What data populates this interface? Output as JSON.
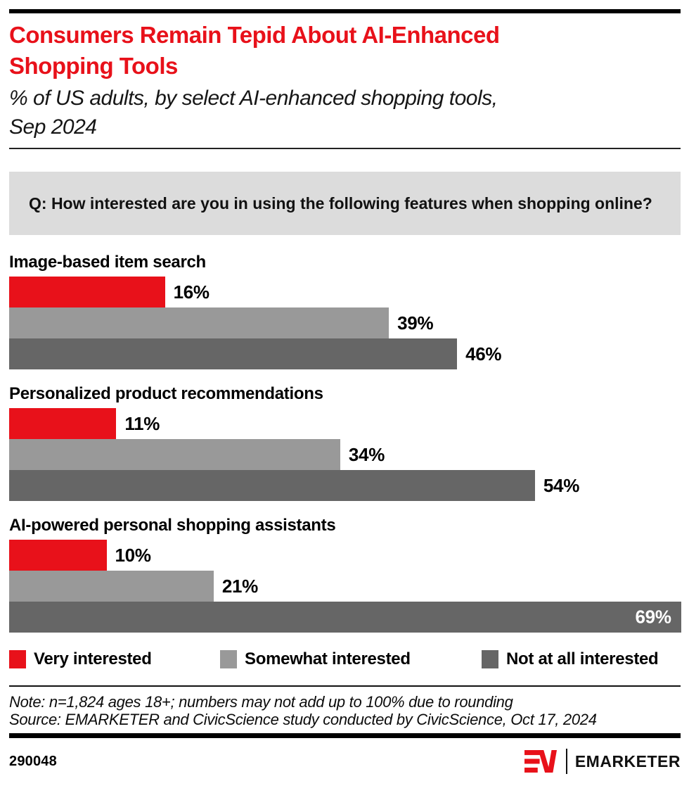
{
  "header": {
    "title_lines": [
      "Consumers Remain Tepid About AI-Enhanced",
      "Shopping Tools"
    ],
    "subtitle_lines": [
      "% of US adults, by select AI-enhanced shopping tools,",
      "Sep 2024"
    ]
  },
  "question": "Q: How interested are you in using the following features when shopping online?",
  "chart_data": {
    "type": "bar",
    "orientation": "horizontal",
    "unit": "%",
    "categories": [
      "Image-based item search",
      "Personalized product recommendations",
      "AI-powered personal shopping assistants"
    ],
    "series": [
      {
        "name": "Very interested",
        "color": "#e8111a",
        "values": [
          16,
          11,
          10
        ]
      },
      {
        "name": "Somewhat interested",
        "color": "#999999",
        "values": [
          39,
          34,
          21
        ]
      },
      {
        "name": "Not at all interested",
        "color": "#666666",
        "values": [
          46,
          54,
          69
        ]
      }
    ],
    "value_label_format": "{v}%",
    "xlim": [
      0,
      69
    ],
    "grid": false,
    "legend_position": "bottom",
    "legend": [
      "Very interested",
      "Somewhat interested",
      "Not at all interested"
    ]
  },
  "footnotes": {
    "note": "Note: n=1,824 ages 18+; numbers may not add up to 100% due to rounding",
    "source": "Source: EMARKETER and CivicScience study conducted by CivicScience, Oct 17, 2024"
  },
  "footer": {
    "chart_id": "290048",
    "brand_name": "EMARKETER"
  }
}
